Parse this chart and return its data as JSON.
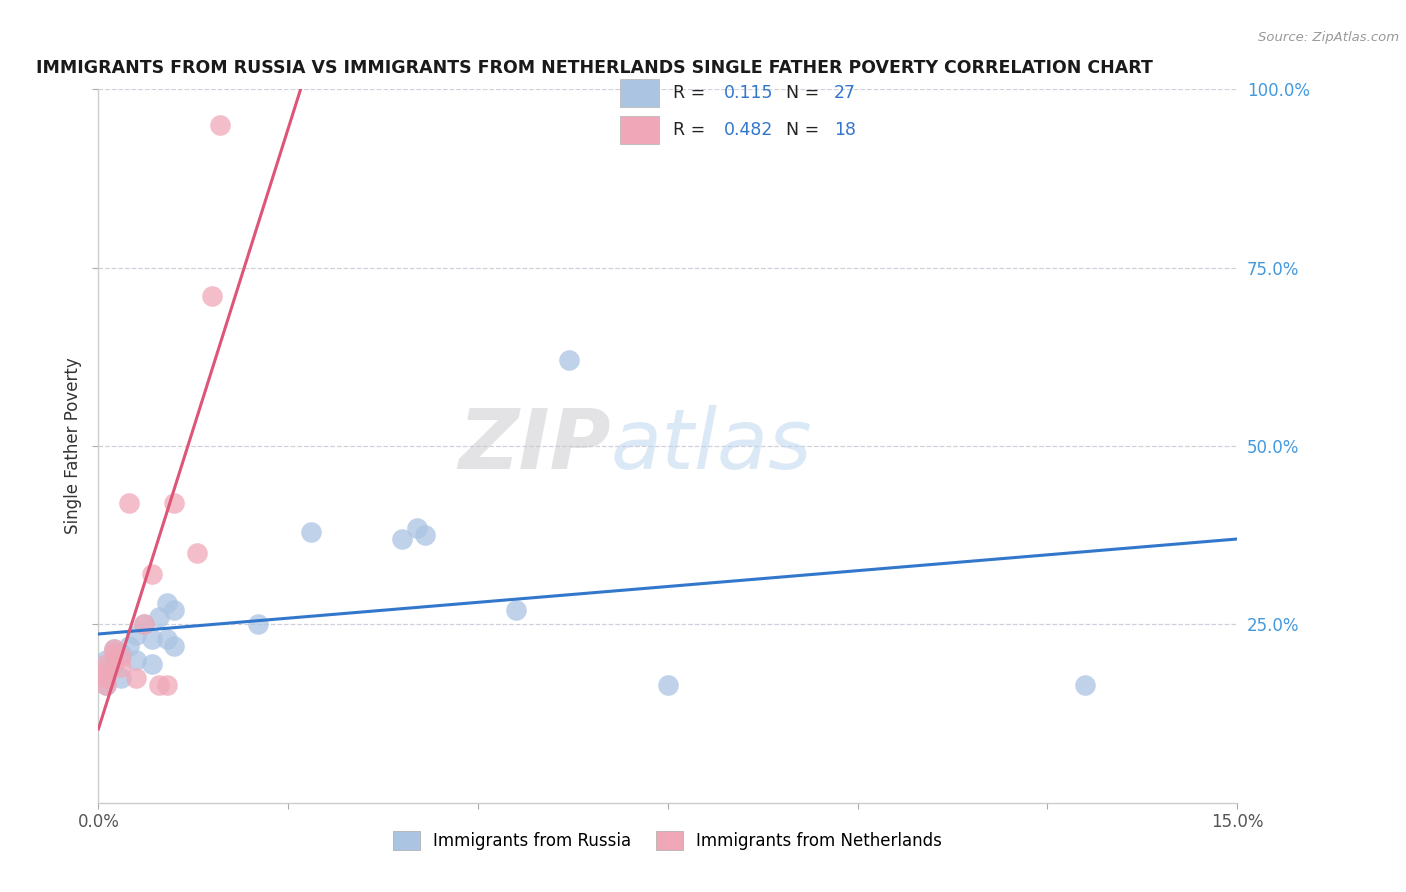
{
  "title": "IMMIGRANTS FROM RUSSIA VS IMMIGRANTS FROM NETHERLANDS SINGLE FATHER POVERTY CORRELATION CHART",
  "source": "Source: ZipAtlas.com",
  "ylabel": "Single Father Poverty",
  "xlabel_legend1": "Immigrants from Russia",
  "xlabel_legend2": "Immigrants from Netherlands",
  "xlim": [
    0.0,
    0.15
  ],
  "ylim": [
    0.0,
    1.0
  ],
  "R1": 0.115,
  "N1": 27,
  "R2": 0.482,
  "N2": 18,
  "color_blue": "#aac4e2",
  "color_pink": "#f0a8b8",
  "line_color_blue": "#3377cc",
  "line_color_pink": "#dd5577",
  "dashed_color": "#e8a0b0",
  "background_color": "#ffffff",
  "watermark_zip": "ZIP",
  "watermark_atlas": "atlas",
  "russia_x": [
    0.001,
    0.001,
    0.001,
    0.002,
    0.002,
    0.003,
    0.003,
    0.004,
    0.005,
    0.005,
    0.006,
    0.007,
    0.007,
    0.008,
    0.009,
    0.009,
    0.01,
    0.01,
    0.021,
    0.028,
    0.04,
    0.042,
    0.043,
    0.055,
    0.062,
    0.075,
    0.13
  ],
  "russia_y": [
    0.18,
    0.2,
    0.165,
    0.195,
    0.215,
    0.21,
    0.175,
    0.22,
    0.235,
    0.2,
    0.25,
    0.195,
    0.23,
    0.26,
    0.23,
    0.28,
    0.27,
    0.22,
    0.25,
    0.38,
    0.37,
    0.385,
    0.375,
    0.27,
    0.62,
    0.165,
    0.165
  ],
  "netherlands_x": [
    0.001,
    0.001,
    0.001,
    0.001,
    0.002,
    0.002,
    0.003,
    0.003,
    0.004,
    0.005,
    0.006,
    0.007,
    0.008,
    0.009,
    0.01,
    0.013,
    0.015,
    0.016
  ],
  "netherlands_y": [
    0.195,
    0.185,
    0.175,
    0.165,
    0.215,
    0.21,
    0.205,
    0.19,
    0.42,
    0.175,
    0.25,
    0.32,
    0.165,
    0.165,
    0.42,
    0.35,
    0.71,
    0.95
  ]
}
